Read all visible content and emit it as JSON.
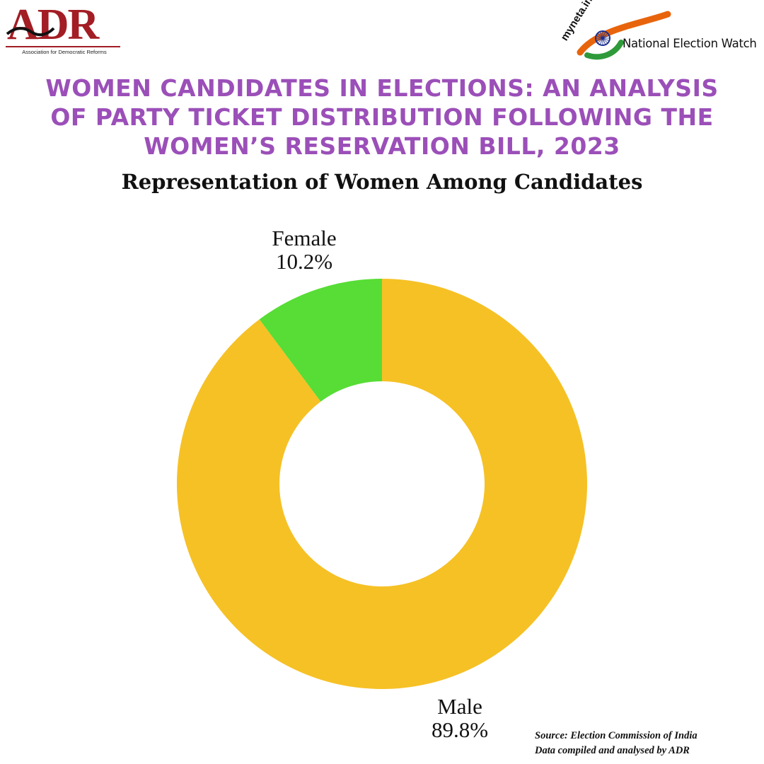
{
  "header": {
    "adr_logo_text": "ADR",
    "adr_tagline": "Association for Democratic Reforms",
    "myneta_text": "myneta.info",
    "new_text": "National Election Watch"
  },
  "title_lines": [
    "WOMEN CANDIDATES IN ELECTIONS: AN ANALYSIS",
    "OF PARTY TICKET DISTRIBUTION FOLLOWING THE",
    "WOMEN’S RESERVATION BILL, 2023"
  ],
  "chart_data": {
    "type": "pie",
    "donut": true,
    "title": "Representation of Women Among Candidates",
    "slices": [
      {
        "label": "Female",
        "value": 10.2,
        "display": "10.2%",
        "color": "#57dd35"
      },
      {
        "label": "Male",
        "value": 89.8,
        "display": "89.8%",
        "color": "#f6c125"
      }
    ]
  },
  "source": {
    "line1": "Source: Election Commission of India",
    "line2": "Data compiled and analysed by ADR"
  },
  "colors": {
    "title": "#9b4fb8",
    "adr_red": "#a31d24",
    "saffron": "#e8640c",
    "green": "#2e9a3a",
    "chakra_blue": "#1b2f8f"
  }
}
